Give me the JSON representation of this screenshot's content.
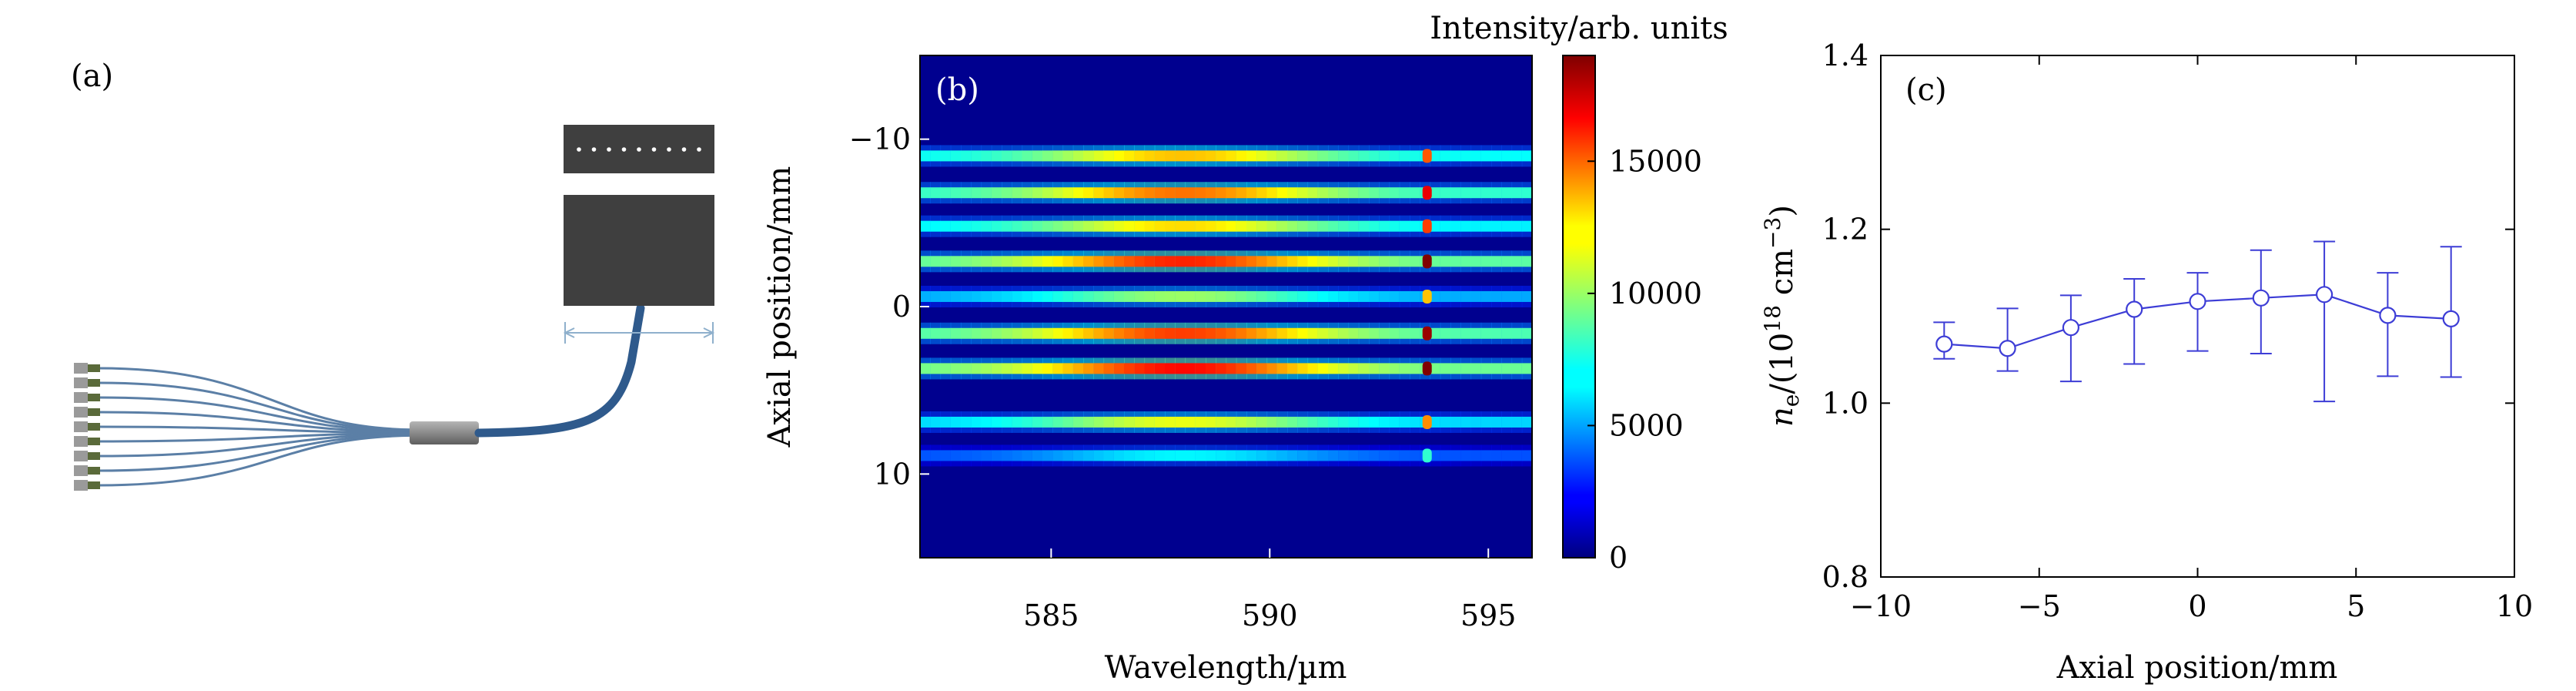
{
  "panel_a": {
    "label": "(a)",
    "connector_count": 9,
    "slit_dot_count": 9,
    "colors": {
      "fiber": "#5b7fa6",
      "bundle": "#2f5a8c",
      "block": "#3f3f3f",
      "ferrule": "#8a8a8a",
      "dim_line": "#8fb0cc"
    }
  },
  "chart_data": [
    {
      "type": "heatmap",
      "panel_label": "(b)",
      "xlabel": "Wavelength/µm",
      "ylabel": "Axial position/mm",
      "xlim": [
        582,
        596
      ],
      "ylim": [
        -15,
        15
      ],
      "y_inverted": true,
      "x_ticks": [
        585,
        590,
        595
      ],
      "y_ticks": [
        -10,
        0,
        10
      ],
      "y_tick_labels": [
        "−10",
        "0",
        "10"
      ],
      "colorbar": {
        "title": "Intensity/arb. units",
        "range": [
          0,
          19000
        ],
        "ticks": [
          0,
          5000,
          10000,
          15000
        ],
        "tick_labels": [
          "0",
          "5000",
          "10000",
          "15000"
        ],
        "colormap": "jet"
      },
      "background_intensity": 1500,
      "line_wavelength": 593.6,
      "stripes": [
        {
          "position": -9.0,
          "peak": 13000,
          "line_peak": 15000
        },
        {
          "position": -6.8,
          "peak": 14500,
          "line_peak": 17000
        },
        {
          "position": -4.8,
          "peak": 12500,
          "line_peak": 15500
        },
        {
          "position": -2.7,
          "peak": 16000,
          "line_peak": 19000
        },
        {
          "position": -0.6,
          "peak": 10000,
          "line_peak": 13000
        },
        {
          "position": 1.6,
          "peak": 15500,
          "line_peak": 18500
        },
        {
          "position": 3.7,
          "peak": 16500,
          "line_peak": 19000
        },
        {
          "position": 6.9,
          "peak": 11500,
          "line_peak": 14000
        },
        {
          "position": 8.9,
          "peak": 7000,
          "line_peak": 8000
        }
      ]
    },
    {
      "type": "scatter",
      "panel_label": "(c)",
      "xlabel": "Axial position/mm",
      "ylabel_parts": {
        "symbol": "n",
        "sub": "e",
        "pre": "/(10",
        "sup": "18",
        "mid": " cm",
        "sup2": "−3",
        "post": ")"
      },
      "xlim": [
        -10,
        10
      ],
      "ylim": [
        0.8,
        1.4
      ],
      "x_ticks": [
        -10,
        -5,
        0,
        5,
        10
      ],
      "x_tick_labels": [
        "−10",
        "−5",
        "0",
        "5",
        "10"
      ],
      "y_ticks": [
        0.8,
        1.0,
        1.2,
        1.4
      ],
      "y_tick_labels": [
        "0.8",
        "1.0",
        "1.2",
        "1.4"
      ],
      "series": [
        {
          "name": "n_e",
          "color": "#3d3dd6",
          "x": [
            -8,
            -6,
            -4,
            -2,
            0,
            2,
            4,
            6,
            8
          ],
          "y": [
            1.068,
            1.063,
            1.087,
            1.108,
            1.117,
            1.121,
            1.125,
            1.101,
            1.097
          ],
          "err_low": [
            0.017,
            0.026,
            0.062,
            0.063,
            0.057,
            0.064,
            0.123,
            0.07,
            0.067
          ],
          "err_high": [
            0.025,
            0.046,
            0.037,
            0.035,
            0.033,
            0.055,
            0.061,
            0.049,
            0.083
          ]
        }
      ]
    }
  ]
}
